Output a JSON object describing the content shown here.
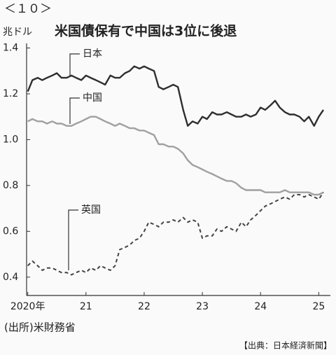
{
  "page_label": "＜１０＞",
  "chart_data": {
    "type": "line",
    "title": "米国債保有で中国は3位に後退",
    "y_unit": "兆ドル",
    "source": "(出所)米財務省",
    "credit": "【出典：日本経済新聞】",
    "x": [
      2020.0,
      2020.08,
      2020.17,
      2020.25,
      2020.33,
      2020.42,
      2020.5,
      2020.58,
      2020.67,
      2020.75,
      2020.83,
      2020.92,
      2021.0,
      2021.08,
      2021.17,
      2021.25,
      2021.33,
      2021.42,
      2021.5,
      2021.58,
      2021.67,
      2021.75,
      2021.83,
      2021.92,
      2022.0,
      2022.08,
      2022.17,
      2022.25,
      2022.33,
      2022.42,
      2022.5,
      2022.58,
      2022.67,
      2022.75,
      2022.83,
      2022.92,
      2023.0,
      2023.08,
      2023.17,
      2023.25,
      2023.33,
      2023.42,
      2023.5,
      2023.58,
      2023.67,
      2023.75,
      2023.83,
      2023.92,
      2024.0,
      2024.08,
      2024.17,
      2024.25,
      2024.33,
      2024.42,
      2024.5,
      2024.58,
      2024.67,
      2024.75,
      2024.83,
      2024.92,
      2025.0,
      2025.08
    ],
    "series": [
      {
        "name": "日本",
        "color": "#2e2e2e",
        "style": "solid",
        "values": [
          1.21,
          1.26,
          1.27,
          1.26,
          1.27,
          1.28,
          1.29,
          1.27,
          1.27,
          1.28,
          1.27,
          1.26,
          1.28,
          1.27,
          1.26,
          1.25,
          1.24,
          1.28,
          1.27,
          1.27,
          1.29,
          1.3,
          1.32,
          1.31,
          1.32,
          1.31,
          1.3,
          1.23,
          1.22,
          1.23,
          1.24,
          1.23,
          1.13,
          1.06,
          1.08,
          1.07,
          1.1,
          1.09,
          1.12,
          1.11,
          1.11,
          1.12,
          1.11,
          1.1,
          1.1,
          1.11,
          1.1,
          1.11,
          1.14,
          1.13,
          1.15,
          1.17,
          1.14,
          1.12,
          1.11,
          1.11,
          1.1,
          1.08,
          1.1,
          1.06,
          1.1,
          1.13
        ]
      },
      {
        "name": "中国",
        "color": "#a0a0a0",
        "style": "solid",
        "values": [
          1.08,
          1.09,
          1.08,
          1.08,
          1.07,
          1.08,
          1.07,
          1.07,
          1.06,
          1.06,
          1.07,
          1.08,
          1.09,
          1.1,
          1.1,
          1.09,
          1.08,
          1.07,
          1.06,
          1.07,
          1.06,
          1.05,
          1.05,
          1.04,
          1.04,
          1.03,
          1.02,
          0.98,
          0.98,
          0.97,
          0.97,
          0.96,
          0.94,
          0.91,
          0.89,
          0.88,
          0.87,
          0.86,
          0.85,
          0.84,
          0.83,
          0.82,
          0.82,
          0.81,
          0.79,
          0.78,
          0.78,
          0.78,
          0.78,
          0.77,
          0.77,
          0.77,
          0.77,
          0.78,
          0.77,
          0.77,
          0.77,
          0.77,
          0.77,
          0.76,
          0.76,
          0.77
        ]
      },
      {
        "name": "英国",
        "color": "#444444",
        "style": "dashed",
        "values": [
          0.45,
          0.47,
          0.45,
          0.43,
          0.44,
          0.44,
          0.43,
          0.42,
          0.42,
          0.41,
          0.42,
          0.43,
          0.42,
          0.44,
          0.43,
          0.45,
          0.44,
          0.43,
          0.45,
          0.52,
          0.53,
          0.54,
          0.56,
          0.57,
          0.6,
          0.64,
          0.63,
          0.62,
          0.64,
          0.64,
          0.65,
          0.64,
          0.66,
          0.64,
          0.65,
          0.64,
          0.57,
          0.58,
          0.58,
          0.61,
          0.6,
          0.62,
          0.61,
          0.6,
          0.64,
          0.62,
          0.65,
          0.67,
          0.69,
          0.71,
          0.72,
          0.73,
          0.74,
          0.75,
          0.74,
          0.76,
          0.76,
          0.75,
          0.76,
          0.75,
          0.74,
          0.77
        ]
      }
    ],
    "xlim": [
      2019.98,
      2025.2
    ],
    "xticks": [
      {
        "value": 2020,
        "label": "2020年"
      },
      {
        "value": 2021,
        "label": "21"
      },
      {
        "value": 2022,
        "label": "22"
      },
      {
        "value": 2023,
        "label": "23"
      },
      {
        "value": 2024,
        "label": "24"
      },
      {
        "value": 2025,
        "label": "25"
      }
    ],
    "ylim": [
      0.32,
      1.42
    ],
    "yticks": [
      0.4,
      0.6,
      0.8,
      {
        "value": 1,
        "label": "1.0"
      },
      1.2,
      1.4
    ],
    "grid": false
  }
}
